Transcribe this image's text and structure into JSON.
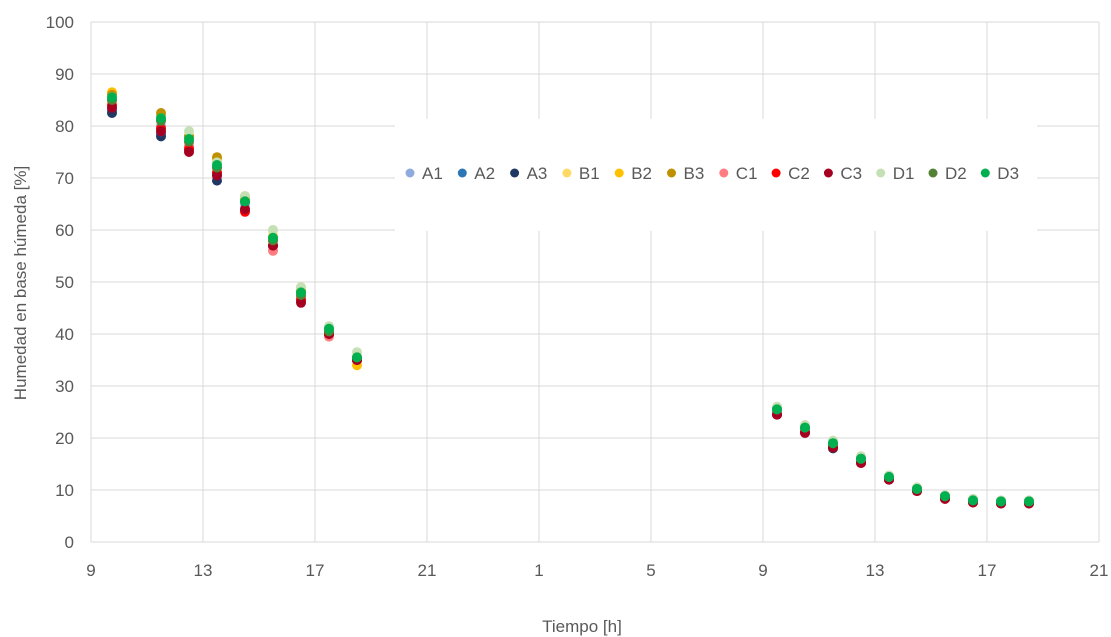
{
  "chart_data": {
    "type": "scatter",
    "title": "",
    "xlabel": "Tiempo [h]",
    "ylabel": "Humedad en base húmeda [%]",
    "x_ticks": [
      "9",
      "13",
      "17",
      "21",
      "1",
      "5",
      "9",
      "13",
      "17",
      "21"
    ],
    "x_tick_hours": [
      9,
      13,
      17,
      21,
      25,
      29,
      33,
      37,
      41,
      45
    ],
    "xlim": [
      9,
      45
    ],
    "ylim": [
      0,
      100
    ],
    "y_ticks": [
      0,
      10,
      20,
      30,
      40,
      50,
      60,
      70,
      80,
      90,
      100
    ],
    "grid": true,
    "legend_position": "top-right",
    "x_day1": [
      9.75,
      11.5,
      12.5,
      13.5,
      14.5,
      15.5,
      16.5,
      17.5,
      18.5
    ],
    "x_day2": [
      33.5,
      34.5,
      35.5,
      36.5,
      37.5,
      38.5,
      39.5,
      40.5,
      41.5,
      42.5
    ],
    "series": [
      {
        "name": "A1",
        "color": "#8faadc",
        "day1": [
          85,
          80,
          76,
          72,
          65,
          58,
          47,
          40,
          35
        ],
        "day2": [
          25,
          21.5,
          18.5,
          15.5,
          12,
          10,
          8.5,
          7.8,
          7.6,
          7.6
        ]
      },
      {
        "name": "A2",
        "color": "#2e75b6",
        "day1": [
          83,
          78.5,
          76,
          70.5,
          64,
          57,
          47,
          40,
          35
        ],
        "day2": [
          25,
          21.5,
          18.5,
          15.5,
          12,
          10,
          8.5,
          7.8,
          7.6,
          7.6
        ]
      },
      {
        "name": "A3",
        "color": "#1f3864",
        "day1": [
          82.5,
          78,
          75.5,
          69.5,
          64,
          57,
          46.5,
          40,
          35
        ],
        "day2": [
          24.5,
          21,
          18,
          15.5,
          12,
          10,
          8.5,
          7.8,
          7.6,
          7.6
        ]
      },
      {
        "name": "B1",
        "color": "#ffd966",
        "day1": [
          86,
          81,
          78,
          73,
          66,
          59,
          49,
          41,
          35.5
        ],
        "day2": [
          25.5,
          22,
          19,
          16,
          12.5,
          10.2,
          8.8,
          8,
          7.8,
          7.8
        ]
      },
      {
        "name": "B2",
        "color": "#ffc000",
        "day1": [
          86.5,
          82,
          78,
          73.5,
          66,
          58.5,
          48.5,
          40.5,
          34
        ],
        "day2": [
          25.5,
          22,
          19,
          16,
          12.5,
          10.2,
          8.8,
          8,
          7.8,
          7.8
        ]
      },
      {
        "name": "B3",
        "color": "#bf9000",
        "day1": [
          86,
          82.5,
          78,
          74,
          66.5,
          58,
          48,
          41,
          35
        ],
        "day2": [
          25.5,
          22,
          19,
          16,
          12.5,
          10.2,
          8.8,
          8,
          7.8,
          7.8
        ]
      },
      {
        "name": "C1",
        "color": "#ff7c80",
        "day1": [
          84,
          79,
          76,
          71,
          64,
          56,
          47,
          39.5,
          35
        ],
        "day2": [
          25,
          21.5,
          18.5,
          15.5,
          12,
          10,
          8.5,
          7.8,
          7.6,
          7.6
        ]
      },
      {
        "name": "C2",
        "color": "#ff0000",
        "day1": [
          84,
          79.5,
          75.5,
          71,
          63.5,
          57,
          46.5,
          40,
          35
        ],
        "day2": [
          24.5,
          21,
          18.2,
          15.2,
          12,
          9.8,
          8.3,
          7.6,
          7.4,
          7.4
        ]
      },
      {
        "name": "C3",
        "color": "#a50021",
        "day1": [
          83.5,
          79,
          75,
          70.5,
          64,
          57,
          46,
          40,
          35
        ],
        "day2": [
          24.5,
          21,
          18.2,
          15.2,
          12,
          9.8,
          8.3,
          7.6,
          7.4,
          7.4
        ]
      },
      {
        "name": "D1",
        "color": "#c5e0b4",
        "day1": [
          85.5,
          81.5,
          79,
          73,
          66.5,
          60,
          49,
          41.5,
          36.5
        ],
        "day2": [
          26,
          22.5,
          19.5,
          16.5,
          12.8,
          10.5,
          9,
          8.3,
          8,
          8
        ]
      },
      {
        "name": "D2",
        "color": "#548235",
        "day1": [
          85,
          81,
          77,
          72,
          65.5,
          58,
          47.5,
          40.5,
          35.5
        ],
        "day2": [
          25.5,
          22,
          19,
          16,
          12.5,
          10.2,
          8.8,
          8,
          7.8,
          7.8
        ]
      },
      {
        "name": "D3",
        "color": "#00b050",
        "day1": [
          85.5,
          81.5,
          77.5,
          72.5,
          65.5,
          58.5,
          48,
          41,
          35.5
        ],
        "day2": [
          25.5,
          22,
          19,
          16,
          12.5,
          10.2,
          8.8,
          8,
          7.8,
          7.8
        ]
      }
    ]
  }
}
